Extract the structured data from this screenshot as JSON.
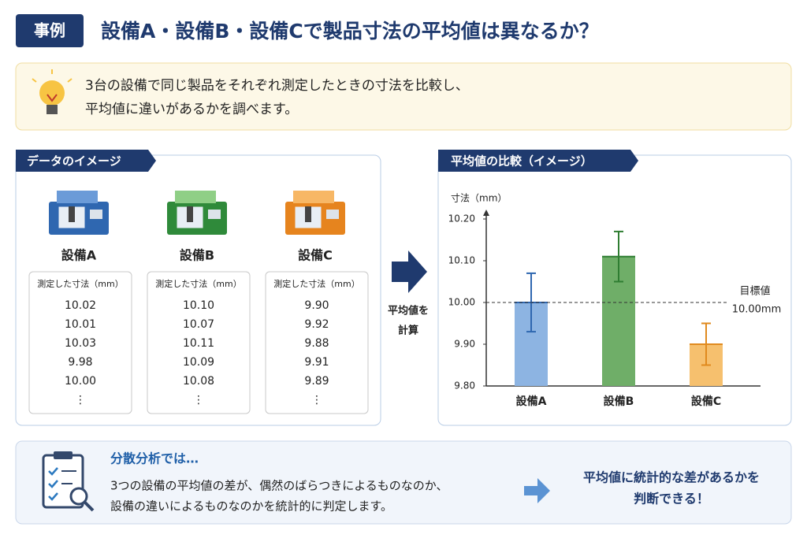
{
  "header": {
    "badge": "事例",
    "title": "設備A・設備B・設備Cで製品寸法の平均値は異なるか？"
  },
  "intro": {
    "lines": [
      "3台の設備で同じ製品をそれぞれ測定したときの寸法を比較し、",
      "平均値に違いがあるかを調べます。"
    ]
  },
  "data_panel": {
    "title": "データのイメージ",
    "machines": [
      {
        "name": "設備A",
        "table_header": "測定した寸法（mm）",
        "values": [
          "10.02",
          "10.01",
          "10.03",
          "9.98",
          "10.00",
          "⋮"
        ]
      },
      {
        "name": "設備B",
        "table_header": "測定した寸法（mm）",
        "values": [
          "10.10",
          "10.07",
          "10.11",
          "10.09",
          "10.08",
          "⋮"
        ]
      },
      {
        "name": "設備C",
        "table_header": "測定した寸法（mm）",
        "values": [
          "9.90",
          "9.92",
          "9.88",
          "9.91",
          "9.89",
          "⋮"
        ]
      }
    ]
  },
  "arrow_label": [
    "平均値を",
    "計算"
  ],
  "chart_data": {
    "type": "bar",
    "title": "平均値の比較（イメージ）",
    "y_label": "寸法（mm）",
    "categories": [
      "設備A",
      "設備B",
      "設備C"
    ],
    "values": [
      10.0,
      10.11,
      9.9
    ],
    "errors": [
      0.07,
      0.06,
      0.05
    ],
    "colors": [
      "#8db4e2",
      "#6fae68",
      "#f6c06e"
    ],
    "error_colors": [
      "#2f67b0",
      "#2f7d32",
      "#e08a1e"
    ],
    "ylim": [
      9.8,
      10.2
    ],
    "yticks": [
      {
        "value": 9.8,
        "label": "9.80"
      },
      {
        "value": 9.9,
        "label": "9.90"
      },
      {
        "value": 10.0,
        "label": "10.00"
      },
      {
        "value": 10.1,
        "label": "10.10"
      },
      {
        "value": 10.2,
        "label": "10.20"
      }
    ],
    "reference_line": {
      "value": 10.0,
      "label": "目標値",
      "value_label": "10.00mm"
    }
  },
  "footer": {
    "heading": "分散分析では…",
    "lines": [
      "3つの設備の平均値の差が、偶然のばらつきによるものなのか、",
      "設備の違いによるものなのかを統計的に判定します。"
    ],
    "conclusion": [
      "平均値に統計的な差があるかを",
      "判断できる！"
    ]
  }
}
